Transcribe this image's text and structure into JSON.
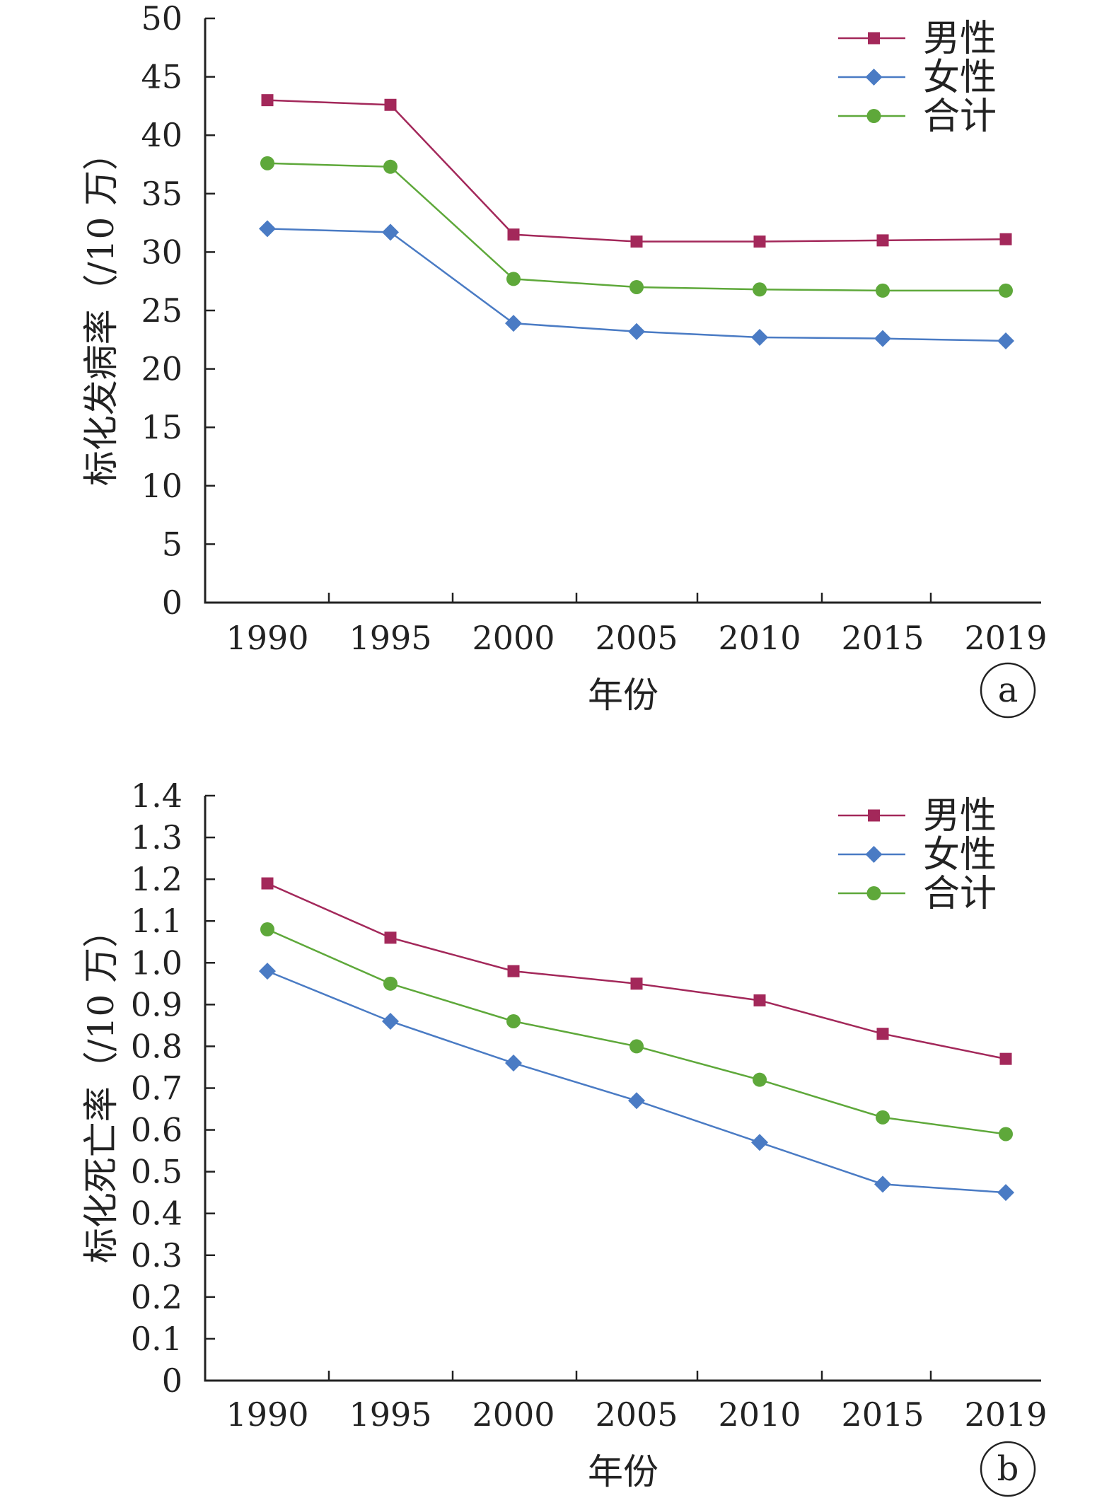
{
  "colors": {
    "male": "#A3285A",
    "female": "#4A7BC4",
    "total": "#5EA83A",
    "axis": "#222222"
  },
  "legend": {
    "male": "男性",
    "female": "女性",
    "total": "合计"
  },
  "chart_data": [
    {
      "type": "line",
      "panel_label": "a",
      "xlabel": "年份",
      "ylabel": "标化发病率（/10 万）",
      "categories": [
        "1990",
        "1995",
        "2000",
        "2005",
        "2010",
        "2015",
        "2019"
      ],
      "ylim": [
        0,
        50
      ],
      "yticks": [
        "0",
        "5",
        "10",
        "15",
        "20",
        "25",
        "30",
        "35",
        "40",
        "45",
        "50"
      ],
      "grid": false,
      "legend_position": "top-right",
      "series": [
        {
          "name": "男性",
          "key": "male",
          "marker": "square",
          "values": [
            43.0,
            42.6,
            31.5,
            30.9,
            30.9,
            31.0,
            31.1
          ]
        },
        {
          "name": "女性",
          "key": "female",
          "marker": "diamond",
          "values": [
            32.0,
            31.7,
            23.9,
            23.2,
            22.7,
            22.6,
            22.4
          ]
        },
        {
          "name": "合计",
          "key": "total",
          "marker": "circle",
          "values": [
            37.6,
            37.3,
            27.7,
            27.0,
            26.8,
            26.7,
            26.7
          ]
        }
      ]
    },
    {
      "type": "line",
      "panel_label": "b",
      "xlabel": "年份",
      "ylabel": "标化死亡率（/10 万）",
      "categories": [
        "1990",
        "1995",
        "2000",
        "2005",
        "2010",
        "2015",
        "2019"
      ],
      "ylim": [
        0,
        1.4
      ],
      "yticks": [
        "0",
        "0.1",
        "0.2",
        "0.3",
        "0.4",
        "0.5",
        "0.6",
        "0.7",
        "0.8",
        "0.9",
        "1.0",
        "1.1",
        "1.2",
        "1.3",
        "1.4"
      ],
      "grid": false,
      "legend_position": "top-right",
      "series": [
        {
          "name": "男性",
          "key": "male",
          "marker": "square",
          "values": [
            1.19,
            1.06,
            0.98,
            0.95,
            0.91,
            0.83,
            0.77
          ]
        },
        {
          "name": "女性",
          "key": "female",
          "marker": "diamond",
          "values": [
            0.98,
            0.86,
            0.76,
            0.67,
            0.57,
            0.47,
            0.45
          ]
        },
        {
          "name": "合计",
          "key": "total",
          "marker": "circle",
          "values": [
            1.08,
            0.95,
            0.86,
            0.8,
            0.72,
            0.63,
            0.59
          ]
        }
      ]
    }
  ]
}
